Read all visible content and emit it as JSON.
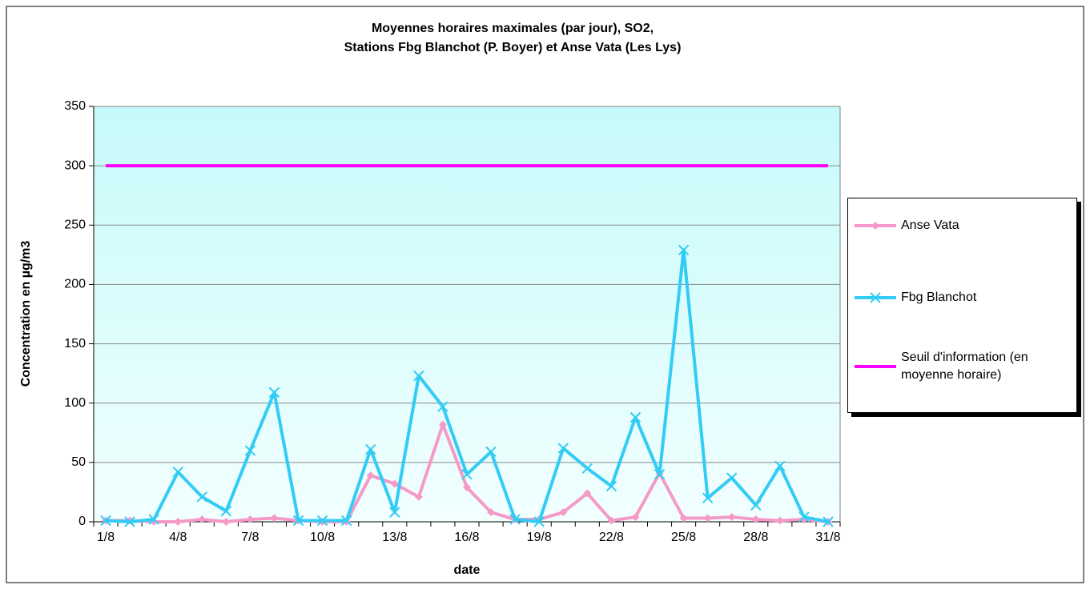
{
  "chart_data": {
    "type": "line",
    "title": [
      "Moyennes horaires maximales (par jour), SO2,",
      "Stations Fbg Blanchot (P. Boyer) et Anse Vata (Les Lys)"
    ],
    "x_label": "date",
    "y_label": "Concentration en µg/m3",
    "categories": [
      "1/8",
      null,
      null,
      "4/8",
      null,
      null,
      "7/8",
      null,
      null,
      "10/8",
      null,
      null,
      "13/8",
      null,
      null,
      "16/8",
      null,
      null,
      "19/8",
      null,
      null,
      "22/8",
      null,
      null,
      "25/8",
      null,
      null,
      "28/8",
      null,
      null,
      "31/8"
    ],
    "series": [
      {
        "name": "Anse Vata",
        "color": "#f59ac8",
        "marker": "diamond",
        "values": [
          1,
          1,
          0,
          0,
          2,
          0,
          2,
          3,
          1,
          0,
          0,
          39,
          32,
          21,
          82,
          29,
          8,
          2,
          2,
          8,
          24,
          1,
          4,
          41,
          3,
          3,
          4,
          2,
          1,
          2,
          0
        ]
      },
      {
        "name": "Fbg Blanchot",
        "color": "#33ccf5",
        "marker": "x",
        "values": [
          1,
          0,
          2,
          42,
          21,
          9,
          60,
          109,
          1,
          1,
          1,
          61,
          8,
          123,
          97,
          40,
          59,
          2,
          0,
          62,
          45,
          30,
          88,
          40,
          229,
          20,
          37,
          14,
          47,
          4,
          0
        ]
      },
      {
        "name": "Seuil d'information (en moyenne horaire)",
        "color": "#ff00ff",
        "marker": "none",
        "values": [
          300,
          300,
          300,
          300,
          300,
          300,
          300,
          300,
          300,
          300,
          300,
          300,
          300,
          300,
          300,
          300,
          300,
          300,
          300,
          300,
          300,
          300,
          300,
          300,
          300,
          300,
          300,
          300,
          300,
          300,
          300
        ]
      }
    ],
    "ylim": [
      0,
      350
    ],
    "yticks": [
      0,
      50,
      100,
      150,
      200,
      250,
      300,
      350
    ],
    "grid": true,
    "legend": "right"
  }
}
